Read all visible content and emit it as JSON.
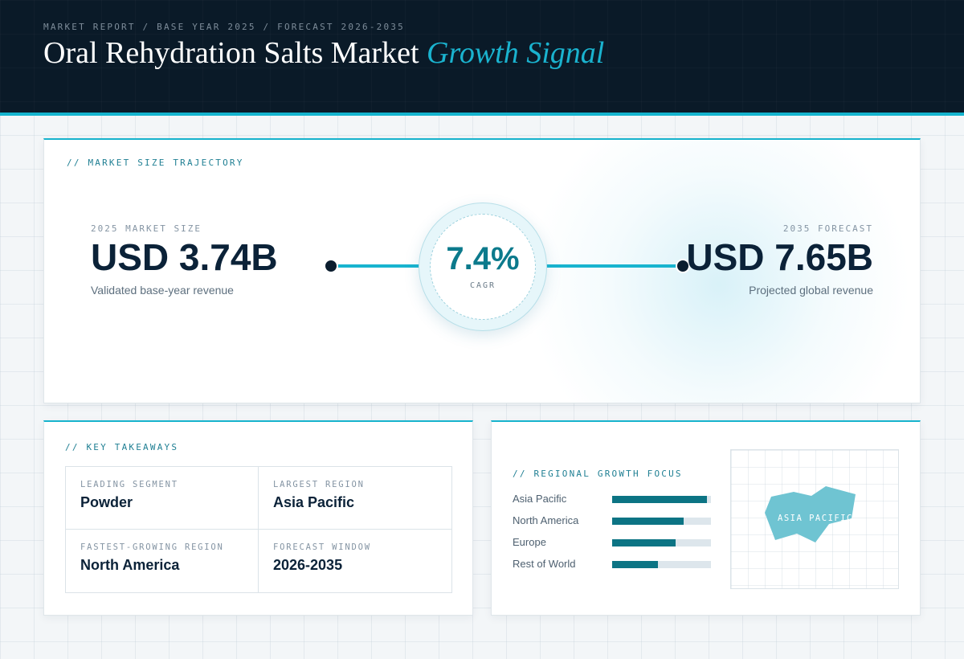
{
  "header": {
    "breadcrumb": "MARKET REPORT / BASE YEAR 2025 / FORECAST 2026-2035",
    "title_main": "Oral Rehydration Salts Market",
    "title_accent": "Growth Signal"
  },
  "trajectory": {
    "label": "// MARKET SIZE TRAJECTORY",
    "start": {
      "label": "2025 MARKET SIZE",
      "value": "USD 3.74B",
      "caption": "Validated base-year revenue"
    },
    "cagr": {
      "value": "7.4%",
      "label": "CAGR"
    },
    "end": {
      "label": "2035 FORECAST",
      "value": "USD 7.65B",
      "caption": "Projected global revenue"
    }
  },
  "takeaways": {
    "label": "// KEY TAKEAWAYS",
    "items": [
      {
        "label": "LEADING SEGMENT",
        "value": "Powder"
      },
      {
        "label": "LARGEST REGION",
        "value": "Asia Pacific"
      },
      {
        "label": "FASTEST-GROWING REGION",
        "value": "North America"
      },
      {
        "label": "FORECAST WINDOW",
        "value": "2026-2035"
      }
    ]
  },
  "regional": {
    "label": "// REGIONAL GROWTH FOCUS",
    "regions": [
      {
        "name": "Asia Pacific",
        "level": 0.96
      },
      {
        "name": "North America",
        "level": 0.72
      },
      {
        "name": "Europe",
        "level": 0.64
      },
      {
        "name": "Rest of World",
        "level": 0.46
      }
    ],
    "map_label": "ASIA PACIFIC"
  },
  "colors": {
    "accent": "#15b4ce",
    "header_bg": "#0a1a28",
    "bar_fill": "#0c7484",
    "map_shape": "#6fc4d2"
  }
}
